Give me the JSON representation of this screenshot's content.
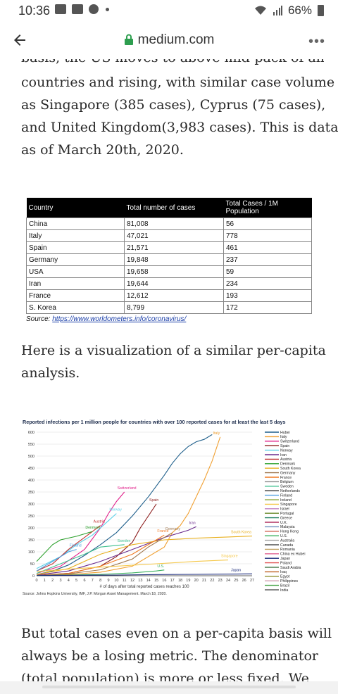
{
  "status_bar": {
    "time": "10:36",
    "battery": "66%"
  },
  "browser": {
    "url": "medium.com",
    "menu": "•••"
  },
  "article": {
    "cut_line": "basis, the US moves to above mid-pack of all",
    "para1": [
      "countries and rising, with similar case volume",
      "as Singapore (385 cases), Cyprus (75 cases),",
      "and United Kingdom(3,983 cases). This is data",
      "as of March 20th, 2020."
    ],
    "para2": [
      "Here is a visualization of a similar per-capita",
      "analysis."
    ],
    "para3": [
      "But total cases even on a per-capita basis will",
      "always be a losing metric. The denominator",
      "(total population) is more or less fixed. We"
    ]
  },
  "case_table": {
    "headers": [
      "Country",
      "Total number of cases",
      "Total Cases / 1M Population"
    ],
    "rows": [
      [
        "China",
        "81,008",
        "56"
      ],
      [
        "Italy",
        "47,021",
        "778"
      ],
      [
        "Spain",
        "21,571",
        "461"
      ],
      [
        "Germany",
        "19,848",
        "237"
      ],
      [
        "USA",
        "19,658",
        "59"
      ],
      [
        "Iran",
        "19,644",
        "234"
      ],
      [
        "France",
        "12,612",
        "193"
      ],
      [
        "S. Korea",
        "8,799",
        "172"
      ]
    ],
    "source_label": "Source:",
    "source_link": "https://www.worldometers.info/coronavirus/"
  },
  "chart_data": {
    "type": "line",
    "title": "Reported infections per 1 million people for countries with over 100  reported cases for at least the last 5 days",
    "xlabel": "# of days after total reported cases reaches 100",
    "ylabel": "",
    "source": "Source: Johns Hopkins University, IMF, J.P. Morgan Asset Management. March 18, 2020.",
    "xlim": [
      0,
      27
    ],
    "ylim": [
      0,
      600
    ],
    "x_ticks": [
      "0",
      "1",
      "2",
      "3",
      "4",
      "5",
      "6",
      "7",
      "8",
      "9",
      "10",
      "11",
      "12",
      "13",
      "14",
      "15",
      "16",
      "17",
      "18",
      "19",
      "20",
      "21",
      "22",
      "23",
      "24",
      "25",
      "26",
      "27"
    ],
    "y_ticks": [
      "0",
      "50",
      "100",
      "150",
      "200",
      "250",
      "300",
      "350",
      "400",
      "450",
      "500",
      "550",
      "600"
    ],
    "legend_position": "right",
    "series": [
      {
        "name": "Hubei",
        "color": "#1f5f8b",
        "label": "",
        "x": [
          0,
          2,
          4,
          6,
          8,
          10,
          12,
          14,
          16,
          17,
          18,
          19,
          20,
          21,
          22
        ],
        "y": [
          5,
          20,
          45,
          85,
          130,
          180,
          250,
          330,
          420,
          470,
          510,
          540,
          560,
          570,
          590
        ]
      },
      {
        "name": "Italy",
        "color": "#f0a032",
        "label": "Italy",
        "x": [
          0,
          4,
          8,
          12,
          16,
          17,
          18,
          19,
          20,
          21,
          22,
          23
        ],
        "y": [
          1,
          5,
          15,
          40,
          120,
          180,
          210,
          260,
          330,
          400,
          480,
          580
        ]
      },
      {
        "name": "Switzerland",
        "color": "#e0208a",
        "label": "Switzerland",
        "x": [
          0,
          3,
          6,
          8,
          9,
          10,
          11
        ],
        "y": [
          10,
          40,
          110,
          200,
          260,
          310,
          350
        ]
      },
      {
        "name": "Spain",
        "color": "#8b1a1a",
        "label": "Spain",
        "x": [
          0,
          4,
          8,
          10,
          12,
          13,
          14,
          15
        ],
        "y": [
          2,
          10,
          40,
          80,
          140,
          200,
          250,
          300
        ]
      },
      {
        "name": "Norway",
        "color": "#5ad0e8",
        "label": "Norway",
        "x": [
          0,
          3,
          5,
          7,
          9,
          10
        ],
        "y": [
          30,
          80,
          130,
          170,
          230,
          260
        ]
      },
      {
        "name": "Iran",
        "color": "#6a2a8c",
        "label": "Iran",
        "x": [
          0,
          4,
          8,
          12,
          16,
          19,
          20
        ],
        "y": [
          3,
          20,
          60,
          110,
          160,
          190,
          205
        ]
      },
      {
        "name": "Austria",
        "color": "#c03030",
        "label": "Austria",
        "x": [
          0,
          2,
          4,
          6,
          8
        ],
        "y": [
          20,
          50,
          110,
          160,
          210
        ]
      },
      {
        "name": "Denmark",
        "color": "#2ca02c",
        "label": "Denmark",
        "x": [
          0,
          2,
          3,
          5,
          7
        ],
        "y": [
          60,
          130,
          150,
          165,
          185
        ]
      },
      {
        "name": "South Korea",
        "color": "#e8b020",
        "label": "South Korea",
        "x": [
          0,
          4,
          8,
          12,
          16,
          20,
          24,
          27
        ],
        "y": [
          5,
          30,
          90,
          130,
          150,
          157,
          162,
          166
        ]
      },
      {
        "name": "France",
        "color": "#f07820",
        "label": "France",
        "x": [
          0,
          4,
          8,
          12,
          15,
          16
        ],
        "y": [
          1,
          10,
          40,
          90,
          150,
          170
        ]
      },
      {
        "name": "Germany",
        "color": "#a07850",
        "label": "Germany",
        "x": [
          0,
          4,
          8,
          12,
          14,
          16,
          17
        ],
        "y": [
          1,
          8,
          25,
          70,
          120,
          160,
          180
        ]
      },
      {
        "name": "Sweden",
        "color": "#40c090",
        "label": "Sweden",
        "x": [
          0,
          3,
          6,
          8,
          11
        ],
        "y": [
          10,
          50,
          90,
          120,
          130
        ]
      },
      {
        "name": "Finland",
        "color": "#50a0e0",
        "label": "Finland",
        "x": [
          0,
          2,
          4,
          5
        ],
        "y": [
          20,
          60,
          100,
          110
        ]
      },
      {
        "name": "Singapore",
        "color": "#f5c84a",
        "label": "Singapore",
        "x": [
          0,
          5,
          10,
          15,
          20,
          24
        ],
        "y": [
          18,
          30,
          40,
          50,
          60,
          66
        ]
      },
      {
        "name": "U.S.",
        "color": "#3cb060",
        "label": "U.S.",
        "x": [
          0,
          4,
          8,
          12,
          15,
          16
        ],
        "y": [
          1,
          3,
          6,
          12,
          20,
          24
        ]
      },
      {
        "name": "Japan",
        "color": "#1a2a7a",
        "label": "Japan",
        "x": [
          0,
          5,
          10,
          15,
          20,
          25,
          27
        ],
        "y": [
          1,
          2,
          3,
          5,
          6,
          7,
          8
        ]
      }
    ],
    "legend": [
      "Hubei",
      "Italy",
      "Switzerland",
      "Spain",
      "Norway",
      "Iran",
      "Austria",
      "Denmark",
      "South Korea",
      "Germany",
      "France",
      "Belgium",
      "Sweden",
      "Netherlands",
      "Finland",
      "Ireland",
      "Singapore",
      "Israel",
      "Portugal",
      "Greece",
      "U.K.",
      "Malaysia",
      "Hong Kong",
      "U.S.",
      "Australia",
      "Canada",
      "Romania",
      "China ex Hubei",
      "Japan",
      "Poland",
      "Saudi Arabia",
      "Iraq",
      "Egypt",
      "Philippines",
      "Brazil",
      "India"
    ],
    "legend_colors": [
      "#1f5f8b",
      "#f0a032",
      "#e0208a",
      "#8b1a1a",
      "#5ad0e8",
      "#6a2a8c",
      "#c03030",
      "#2ca02c",
      "#e8b020",
      "#a07850",
      "#f07820",
      "#888888",
      "#40c090",
      "#333333",
      "#50a0e0",
      "#9ab050",
      "#f5c84a",
      "#c080c0",
      "#6a8a2a",
      "#208060",
      "#b03060",
      "#7090c0",
      "#d06050",
      "#3cb060",
      "#a0a0a0",
      "#505050",
      "#c0a060",
      "#e06090",
      "#1a2a7a",
      "#e05050",
      "#508050",
      "#c06020",
      "#909030",
      "#d0a0b0",
      "#40a040",
      "#606060"
    ]
  }
}
